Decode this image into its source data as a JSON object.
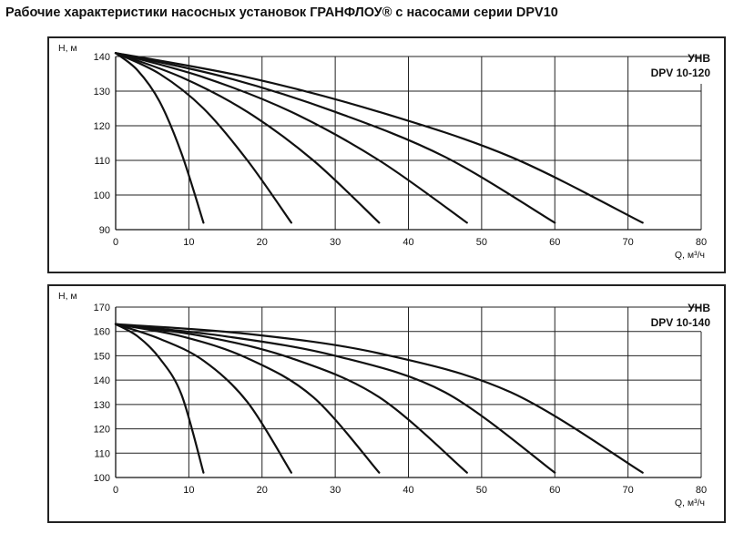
{
  "page": {
    "title": "Рабочие характеристики насосных установок ГРАНФЛОУ® с насосами серии DPV10"
  },
  "chart_data": [
    {
      "type": "line",
      "title_lines": [
        "УНВ",
        "DPV 10-120"
      ],
      "xlabel": "Q, м³/ч",
      "ylabel": "Н, м",
      "xlim": [
        0,
        80
      ],
      "ylim": [
        90,
        140
      ],
      "x_ticks": [
        0,
        10,
        20,
        30,
        40,
        50,
        60,
        70,
        80
      ],
      "y_ticks": [
        90,
        100,
        110,
        120,
        130,
        140
      ],
      "grid": true,
      "series": [
        {
          "points": [
            [
              0,
              141
            ],
            [
              3,
              136
            ],
            [
              6,
              127
            ],
            [
              9,
              112
            ],
            [
              12,
              92
            ]
          ]
        },
        {
          "points": [
            [
              0,
              141
            ],
            [
              6,
              135
            ],
            [
              12,
              125
            ],
            [
              18,
              110
            ],
            [
              24,
              92
            ]
          ]
        },
        {
          "points": [
            [
              0,
              141
            ],
            [
              9,
              134
            ],
            [
              18,
              124
            ],
            [
              27,
              110
            ],
            [
              36,
              92
            ]
          ]
        },
        {
          "points": [
            [
              0,
              141
            ],
            [
              12,
              134
            ],
            [
              24,
              124
            ],
            [
              36,
              110
            ],
            [
              48,
              92
            ]
          ]
        },
        {
          "points": [
            [
              0,
              141
            ],
            [
              15,
              134
            ],
            [
              30,
              124
            ],
            [
              45,
              111
            ],
            [
              60,
              92
            ]
          ]
        },
        {
          "points": [
            [
              0,
              141
            ],
            [
              18,
              134
            ],
            [
              36,
              124
            ],
            [
              54,
              111
            ],
            [
              72,
              92
            ]
          ]
        }
      ]
    },
    {
      "type": "line",
      "title_lines": [
        "УНВ",
        "DPV 10-140"
      ],
      "xlabel": "Q, м³/ч",
      "ylabel": "Н, м",
      "xlim": [
        0,
        80
      ],
      "ylim": [
        100,
        170
      ],
      "x_ticks": [
        0,
        10,
        20,
        30,
        40,
        50,
        60,
        70,
        80
      ],
      "y_ticks": [
        100,
        110,
        120,
        130,
        140,
        150,
        160,
        170
      ],
      "grid": true,
      "series": [
        {
          "points": [
            [
              0,
              163
            ],
            [
              3,
              158
            ],
            [
              6,
              149
            ],
            [
              9,
              134
            ],
            [
              12,
              102
            ]
          ]
        },
        {
          "points": [
            [
              0,
              163
            ],
            [
              6,
              157
            ],
            [
              12,
              148
            ],
            [
              18,
              131
            ],
            [
              24,
              102
            ]
          ]
        },
        {
          "points": [
            [
              0,
              163
            ],
            [
              9,
              158
            ],
            [
              18,
              149
            ],
            [
              27,
              133
            ],
            [
              36,
              102
            ]
          ]
        },
        {
          "points": [
            [
              0,
              163
            ],
            [
              12,
              158
            ],
            [
              24,
              149
            ],
            [
              36,
              133
            ],
            [
              48,
              102
            ]
          ]
        },
        {
          "points": [
            [
              0,
              163
            ],
            [
              15,
              158
            ],
            [
              30,
              150
            ],
            [
              45,
              135
            ],
            [
              60,
              102
            ]
          ]
        },
        {
          "points": [
            [
              0,
              163
            ],
            [
              18,
              159
            ],
            [
              36,
              151
            ],
            [
              54,
              135
            ],
            [
              72,
              102
            ]
          ]
        }
      ]
    }
  ]
}
